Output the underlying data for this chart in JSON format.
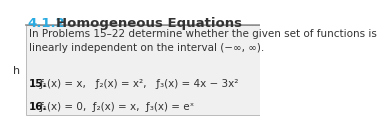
{
  "title_number": "4.1.2",
  "title_text": "Homogeneous Equations",
  "title_color_number": "#29ABE2",
  "title_color_text": "#333333",
  "box_text_intro": "In Problems 15–22 determine whether the given set of functions is\nlinearly independent on the interval (−∞, ∞).",
  "problem_15_label": "15.",
  "problem_16_label": "16.",
  "side_letter": "h",
  "bg_color": "#ffffff",
  "box_bg_color": "#f0f0f0",
  "box_border_color": "#bbbbbb",
  "text_color": "#333333",
  "bold_color": "#111111",
  "font_size_title": 9.5,
  "font_size_body": 7.5,
  "font_size_side": 8
}
